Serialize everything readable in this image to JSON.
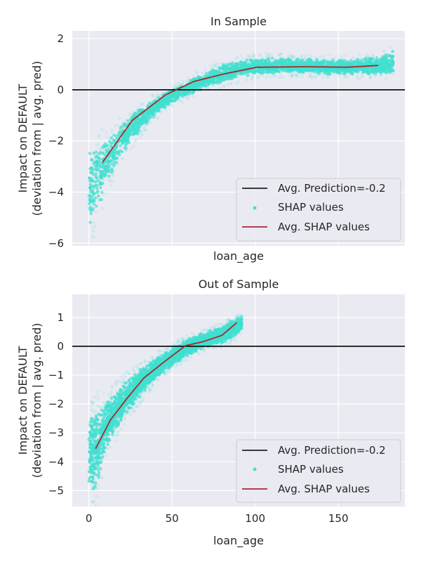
{
  "chart_data": [
    {
      "type": "scatter",
      "title": "In Sample",
      "xlabel": "loan_age",
      "ylabel_line1": "Impact on DEFAULT",
      "ylabel_line2": "(deviation from | avg. pred)",
      "xlim": [
        -10,
        190
      ],
      "ylim": [
        -6.1,
        2.3
      ],
      "xticks": [
        0,
        50,
        100,
        150
      ],
      "xtick_labels_shown": false,
      "yticks": [
        -6,
        -4,
        -2,
        0,
        2
      ],
      "grid": true,
      "legend_position": "lower-right",
      "legend": [
        "Avg. Prediction=-0.2",
        "SHAP values",
        "Avg. SHAP values"
      ],
      "avg_prediction_line": 0,
      "shap_band": [
        {
          "x": 0,
          "low": -5.5,
          "high": -2.4
        },
        {
          "x": 5,
          "low": -5.0,
          "high": -2.2
        },
        {
          "x": 10,
          "low": -3.8,
          "high": -2.0
        },
        {
          "x": 15,
          "low": -3.2,
          "high": -1.7
        },
        {
          "x": 20,
          "low": -2.5,
          "high": -1.3
        },
        {
          "x": 30,
          "low": -1.7,
          "high": -0.7
        },
        {
          "x": 40,
          "low": -1.0,
          "high": -0.3
        },
        {
          "x": 50,
          "low": -0.55,
          "high": 0.05
        },
        {
          "x": 60,
          "low": -0.2,
          "high": 0.35
        },
        {
          "x": 70,
          "low": 0.05,
          "high": 0.75
        },
        {
          "x": 80,
          "low": 0.25,
          "high": 1.0
        },
        {
          "x": 90,
          "low": 0.45,
          "high": 1.15
        },
        {
          "x": 100,
          "low": 0.6,
          "high": 1.3
        },
        {
          "x": 120,
          "low": 0.65,
          "high": 1.25
        },
        {
          "x": 140,
          "low": 0.6,
          "high": 1.2
        },
        {
          "x": 160,
          "low": 0.6,
          "high": 1.2
        },
        {
          "x": 175,
          "low": 0.6,
          "high": 1.3
        },
        {
          "x": 183,
          "low": 0.6,
          "high": 1.55
        }
      ],
      "avg_shap": {
        "x": [
          8,
          26,
          46,
          63,
          80,
          101,
          130,
          155,
          174
        ],
        "y": [
          -2.85,
          -1.2,
          -0.2,
          0.32,
          0.6,
          0.88,
          0.9,
          0.88,
          0.95
        ]
      },
      "colors": {
        "shap": "#40e0d0",
        "avg_shap": "#a52a2a",
        "avg_prediction": "#000000",
        "background": "#eaeaf2"
      }
    },
    {
      "type": "scatter",
      "title": "Out of Sample",
      "xlabel": "loan_age",
      "ylabel_line1": "Impact on DEFAULT",
      "ylabel_line2": "(deviation from | avg. pred)",
      "xlim": [
        -10,
        190
      ],
      "ylim": [
        -5.55,
        1.8
      ],
      "xticks": [
        0,
        50,
        100,
        150
      ],
      "xtick_labels_shown": true,
      "yticks": [
        -5,
        -4,
        -3,
        -2,
        -1,
        0,
        1
      ],
      "grid": true,
      "legend_position": "lower-right",
      "legend": [
        "Avg. Prediction=-0.2",
        "SHAP values",
        "Avg. SHAP values"
      ],
      "avg_prediction_line": 0,
      "shap_band": [
        {
          "x": 0,
          "low": -5.1,
          "high": -2.4
        },
        {
          "x": 5,
          "low": -4.9,
          "high": -2.2
        },
        {
          "x": 10,
          "low": -3.6,
          "high": -2.0
        },
        {
          "x": 15,
          "low": -3.1,
          "high": -1.6
        },
        {
          "x": 20,
          "low": -2.6,
          "high": -1.3
        },
        {
          "x": 30,
          "low": -1.8,
          "high": -0.8
        },
        {
          "x": 40,
          "low": -1.15,
          "high": -0.4
        },
        {
          "x": 50,
          "low": -0.7,
          "high": -0.05
        },
        {
          "x": 60,
          "low": -0.3,
          "high": 0.3
        },
        {
          "x": 70,
          "low": -0.05,
          "high": 0.5
        },
        {
          "x": 80,
          "low": 0.1,
          "high": 0.7
        },
        {
          "x": 87,
          "low": 0.3,
          "high": 0.95
        },
        {
          "x": 92,
          "low": 0.6,
          "high": 1.05
        }
      ],
      "avg_shap": {
        "x": [
          4,
          13,
          23,
          33,
          45,
          58,
          68,
          80,
          89
        ],
        "y": [
          -3.55,
          -2.55,
          -1.8,
          -1.1,
          -0.55,
          0.02,
          0.15,
          0.38,
          0.82
        ]
      },
      "colors": {
        "shap": "#40e0d0",
        "avg_shap": "#a52a2a",
        "avg_prediction": "#000000",
        "background": "#eaeaf2"
      }
    }
  ]
}
